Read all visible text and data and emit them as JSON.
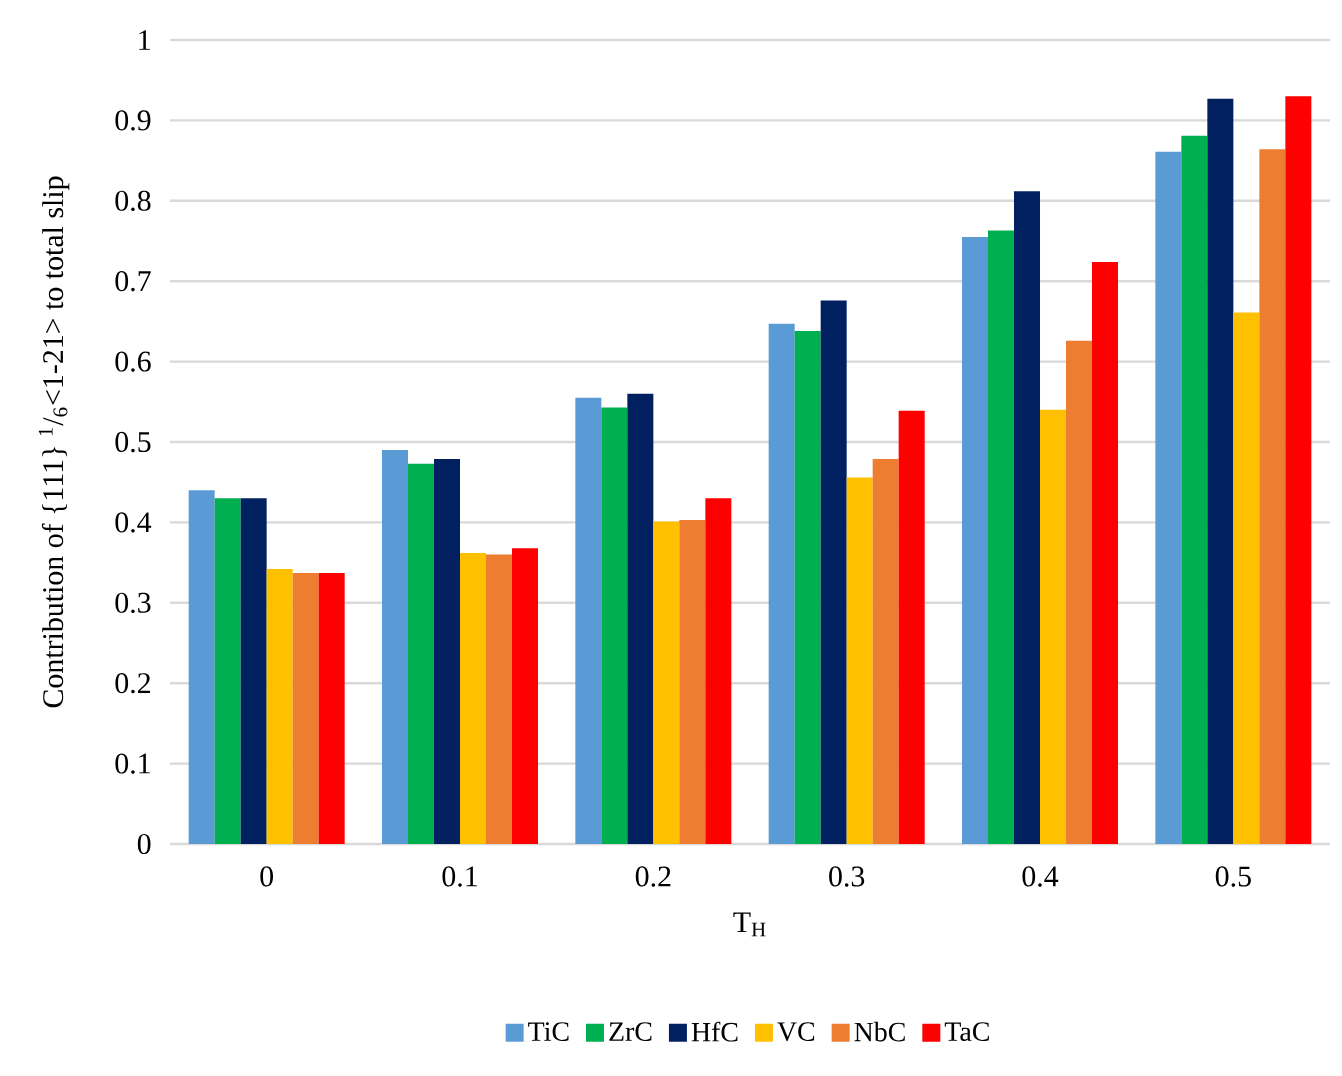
{
  "chart_data": {
    "type": "bar",
    "xlabel": "T$_{H}$",
    "ylabel": "Contribution of {111} $^{1}$/$_{6}$<1-21> to total slip",
    "categories": [
      "0",
      "0.1",
      "0.2",
      "0.3",
      "0.4",
      "0.5"
    ],
    "series": [
      {
        "name": "TiC",
        "color": "#5b9bd5",
        "values": [
          0.44,
          0.49,
          0.555,
          0.647,
          0.755,
          0.861
        ]
      },
      {
        "name": "ZrC",
        "color": "#00b050",
        "values": [
          0.43,
          0.473,
          0.543,
          0.638,
          0.763,
          0.881
        ]
      },
      {
        "name": "HfC",
        "color": "#002060",
        "values": [
          0.43,
          0.479,
          0.56,
          0.676,
          0.812,
          0.927
        ]
      },
      {
        "name": "VC",
        "color": "#ffc000",
        "values": [
          0.342,
          0.362,
          0.401,
          0.456,
          0.54,
          0.661
        ]
      },
      {
        "name": "NbC",
        "color": "#ed7d31",
        "values": [
          0.337,
          0.36,
          0.403,
          0.479,
          0.626,
          0.864
        ]
      },
      {
        "name": "TaC",
        "color": "#ff0000",
        "values": [
          0.337,
          0.368,
          0.43,
          0.539,
          0.724,
          0.93
        ]
      }
    ],
    "ylim": [
      0,
      1
    ],
    "yticks": [
      0,
      0.1,
      0.2,
      0.3,
      0.4,
      0.5,
      0.6,
      0.7,
      0.8,
      0.9,
      1
    ],
    "grid": "y",
    "legend": "bottom"
  }
}
